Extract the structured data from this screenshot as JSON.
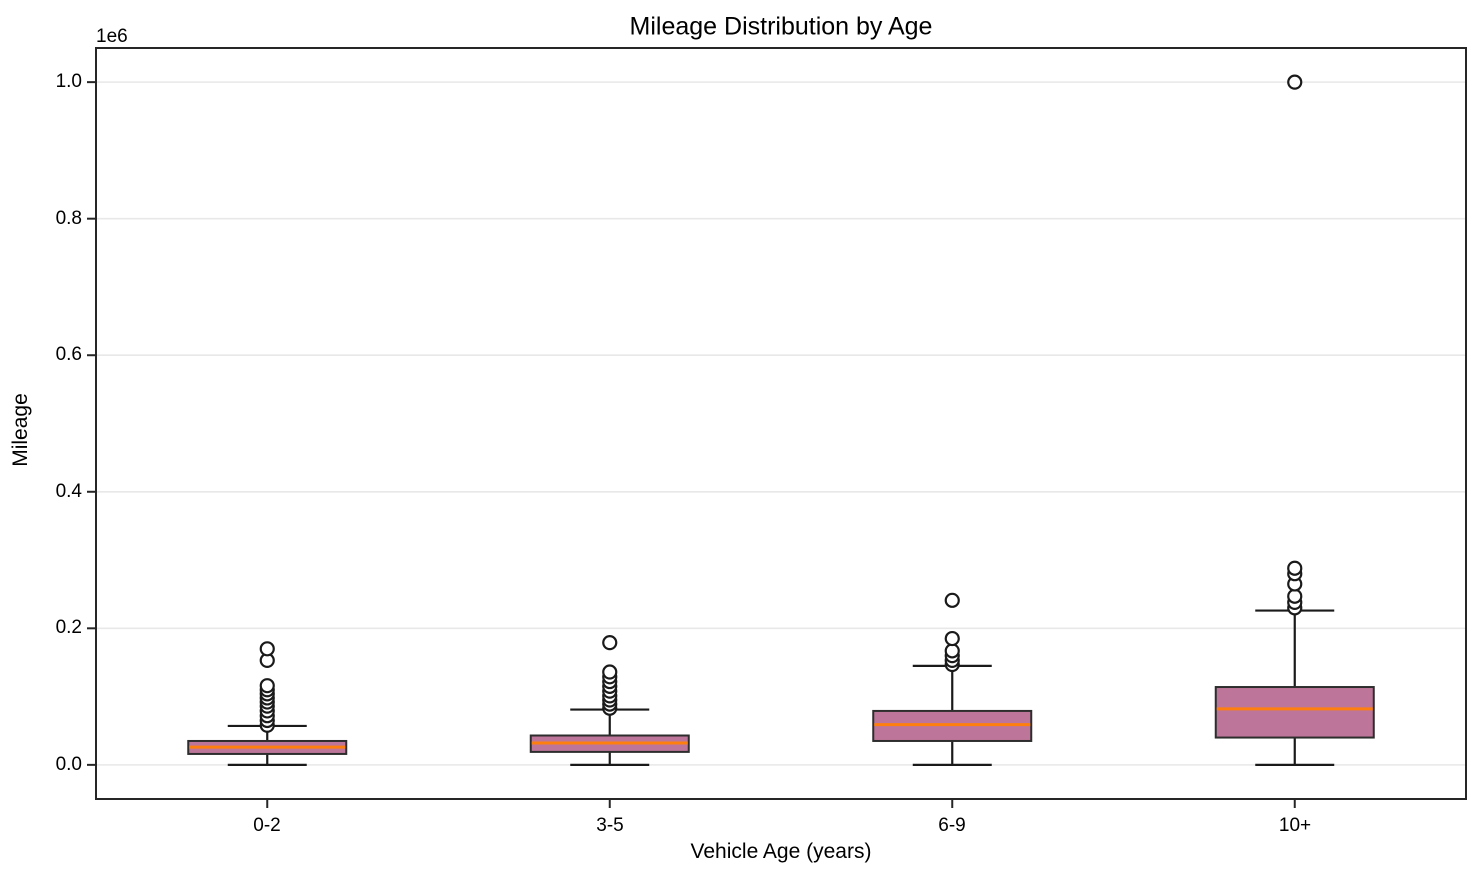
{
  "chart_data": {
    "type": "boxplot",
    "title": "Mileage Distribution by Age",
    "xlabel": "Vehicle Age (years)",
    "ylabel": "Mileage",
    "y_offset_label": "1e6",
    "categories": [
      "0-2",
      "3-5",
      "6-9",
      "10+"
    ],
    "ylim": [
      -50000,
      1050000
    ],
    "yticks": [
      0,
      200000,
      400000,
      600000,
      800000,
      1000000
    ],
    "ytick_labels": [
      "0.0",
      "0.2",
      "0.4",
      "0.6",
      "0.8",
      "1.0"
    ],
    "grid": "horizontal-only",
    "legend": "none",
    "colors": {
      "box_fill": "#bd7699",
      "box_edge": "#2d2d2d",
      "median": "#ff7f0e",
      "whisker": "#1a1a1a",
      "outlier_edge": "#1a1a1a",
      "outlier_fill": "#ffffff",
      "gridline": "#e8e8e8",
      "spine": "#262626",
      "background": "#ffffff"
    },
    "boxes": [
      {
        "category": "0-2",
        "whisker_low": 0,
        "q1": 16000,
        "median": 26000,
        "q3": 35000,
        "whisker_high": 57000,
        "outliers": [
          58000,
          65000,
          72000,
          79000,
          86000,
          92000,
          98000,
          104000,
          110000,
          116000,
          153000,
          170000
        ]
      },
      {
        "category": "3-5",
        "whisker_low": 0,
        "q1": 19000,
        "median": 32000,
        "q3": 43000,
        "whisker_high": 81000,
        "outliers": [
          83000,
          89000,
          95000,
          101000,
          108000,
          115000,
          122000,
          129000,
          136000,
          179000
        ]
      },
      {
        "category": "6-9",
        "whisker_low": 0,
        "q1": 35000,
        "median": 59000,
        "q3": 79000,
        "whisker_high": 145000,
        "outliers": [
          147000,
          153000,
          160000,
          167000,
          185000,
          241000
        ]
      },
      {
        "category": "10+",
        "whisker_low": 0,
        "q1": 40000,
        "median": 82000,
        "q3": 114000,
        "whisker_high": 226000,
        "outliers": [
          230000,
          238000,
          247000,
          265000,
          280000,
          288000,
          1000000
        ]
      }
    ]
  }
}
